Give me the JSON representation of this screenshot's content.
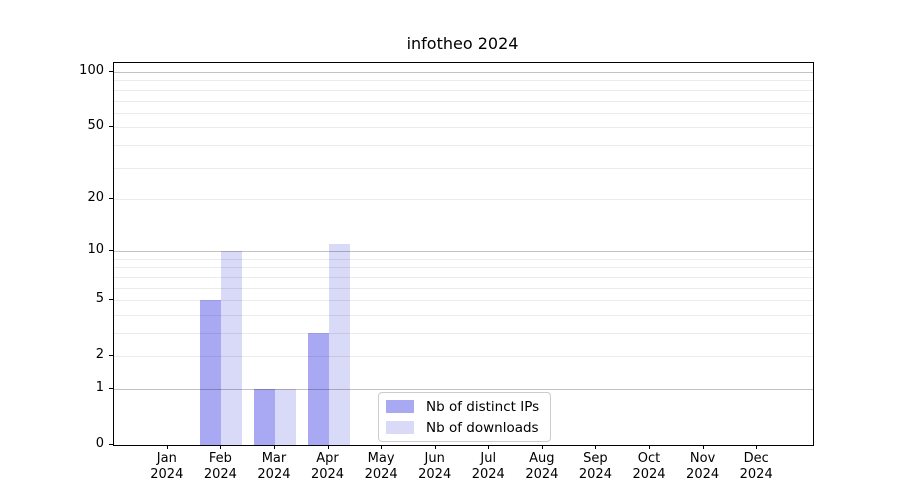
{
  "chart_data": {
    "type": "bar",
    "title": "infotheo 2024",
    "x": {
      "categories": [
        "Jan",
        "Feb",
        "Mar",
        "Apr",
        "May",
        "Jun",
        "Jul",
        "Aug",
        "Sep",
        "Oct",
        "Nov",
        "Dec"
      ],
      "year_label": "2024"
    },
    "series": [
      {
        "name": "Nb of distinct IPs",
        "color": "#a9a9f3",
        "values": [
          0,
          5,
          1,
          3,
          0,
          0,
          0,
          0,
          0,
          0,
          0,
          0
        ]
      },
      {
        "name": "Nb of downloads",
        "color": "#d9d9f8",
        "values": [
          0,
          10,
          1,
          11,
          0,
          0,
          0,
          0,
          0,
          0,
          0,
          0
        ]
      }
    ],
    "y_axis": {
      "scale": "log10(1+v)",
      "labeled_ticks": [
        0,
        1,
        2,
        5,
        10,
        20,
        50,
        100
      ],
      "major_gridlines": [
        1,
        10,
        100
      ],
      "minor_gridlines": [
        2,
        3,
        4,
        5,
        6,
        7,
        8,
        9,
        20,
        30,
        40,
        50,
        60,
        70,
        80,
        90
      ],
      "top_value": 112,
      "grid_on": true
    },
    "legend": {
      "position": "lower-center"
    },
    "colors": {
      "background": "#ffffff",
      "axis": "#000000",
      "text": "#000000",
      "major_grid": "rgba(0,0,0,0.24)",
      "minor_grid": "rgba(0,0,0,0.08)",
      "legend_border": "#cccccc"
    }
  }
}
